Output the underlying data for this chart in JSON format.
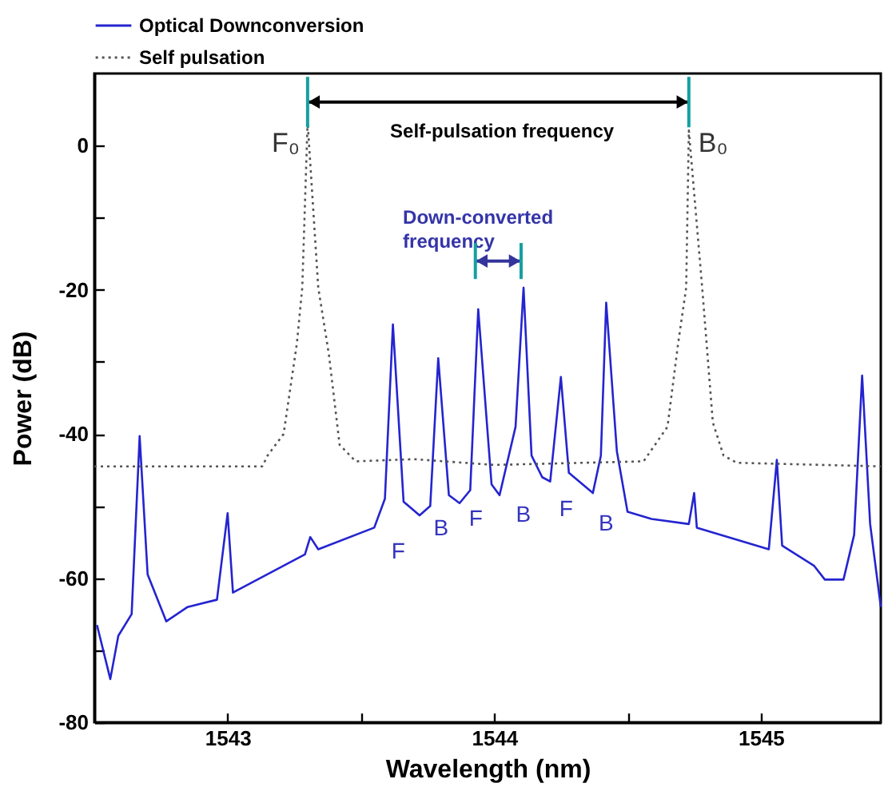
{
  "chart_data": {
    "type": "line",
    "xlabel": "Wavelength (nm)",
    "ylabel": "Power (dB)",
    "xlim": [
      1542.5,
      1545.45
    ],
    "xticks": [
      1543,
      {
        "value": 1543.5,
        "label": null
      },
      1544,
      {
        "value": 1544.5,
        "label": null
      },
      1545
    ],
    "ylim": [
      -80,
      10
    ],
    "yticks": [
      -80,
      {
        "value": -70,
        "label": null
      },
      -60,
      {
        "value": -50,
        "label": null
      },
      -40,
      {
        "value": -30,
        "label": null
      },
      -20,
      {
        "value": -10,
        "label": null
      },
      0
    ],
    "grid": false,
    "legend": "top left",
    "marker": "none",
    "series": [
      {
        "name": "Optical Downconversion",
        "color": "#2424d0",
        "line_style": "solid",
        "x": [
          1542.51,
          1542.56,
          1542.59,
          1542.64,
          1542.67,
          1542.7,
          1542.77,
          1542.85,
          1542.96,
          1543.0,
          1543.02,
          1543.29,
          1543.31,
          1543.34,
          1543.55,
          1543.59,
          1543.62,
          1543.66,
          1543.72,
          1543.76,
          1543.79,
          1543.83,
          1543.87,
          1543.91,
          1543.94,
          1543.99,
          1544.02,
          1544.08,
          1544.11,
          1544.14,
          1544.18,
          1544.21,
          1544.25,
          1544.28,
          1544.37,
          1544.4,
          1544.42,
          1544.46,
          1544.5,
          1544.59,
          1544.73,
          1544.75,
          1544.76,
          1545.03,
          1545.06,
          1545.08,
          1545.2,
          1545.24,
          1545.31,
          1545.35,
          1545.38,
          1545.41,
          1545.45
        ],
        "values": [
          -66.5,
          -74,
          -68,
          -65,
          -40.3,
          -59.5,
          -66,
          -64,
          -63,
          -51,
          -62,
          -56.7,
          -54.3,
          -56,
          -53,
          -49,
          -24.8,
          -49.4,
          -51.3,
          -50,
          -29.5,
          -48.5,
          -49.6,
          -47.8,
          -22.7,
          -47,
          -48.5,
          -39,
          -19.7,
          -43,
          -46,
          -46.6,
          -32.1,
          -45.4,
          -48.2,
          -43,
          -21.8,
          -42.4,
          -50.8,
          -51.8,
          -52.5,
          -48.2,
          -53,
          -56,
          -43.6,
          -55.5,
          -58.3,
          -60.2,
          -60.2,
          -54,
          -31.9,
          -52.5,
          -64
        ]
      },
      {
        "name": "Self pulsation",
        "color": "#555555",
        "line_style": "dotted",
        "x": [
          1542.5,
          1543.13,
          1543.15,
          1543.21,
          1543.26,
          1543.28,
          1543.3,
          1543.34,
          1543.38,
          1543.42,
          1543.48,
          1543.7,
          1544.0,
          1544.56,
          1544.65,
          1544.69,
          1544.72,
          1544.73,
          1544.78,
          1544.82,
          1544.86,
          1544.91,
          1545.45
        ],
        "values": [
          -44.5,
          -44.5,
          -43,
          -40,
          -27.4,
          -19.7,
          3.3,
          -19.7,
          -29,
          -41.5,
          -43.8,
          -43.5,
          -44.3,
          -43.8,
          -39,
          -27.4,
          -19.7,
          2.1,
          -19.7,
          -38.4,
          -43,
          -44,
          -44.5
        ]
      }
    ],
    "annotations": [
      {
        "text": "F₀",
        "x": 1543.3,
        "y": 2
      },
      {
        "text": "B₀",
        "x": 1544.73,
        "y": 2
      },
      "Self-pulsation frequency",
      "Down-converted\nfrequency",
      "F",
      "B",
      "F",
      "B",
      "F",
      "B"
    ]
  }
}
